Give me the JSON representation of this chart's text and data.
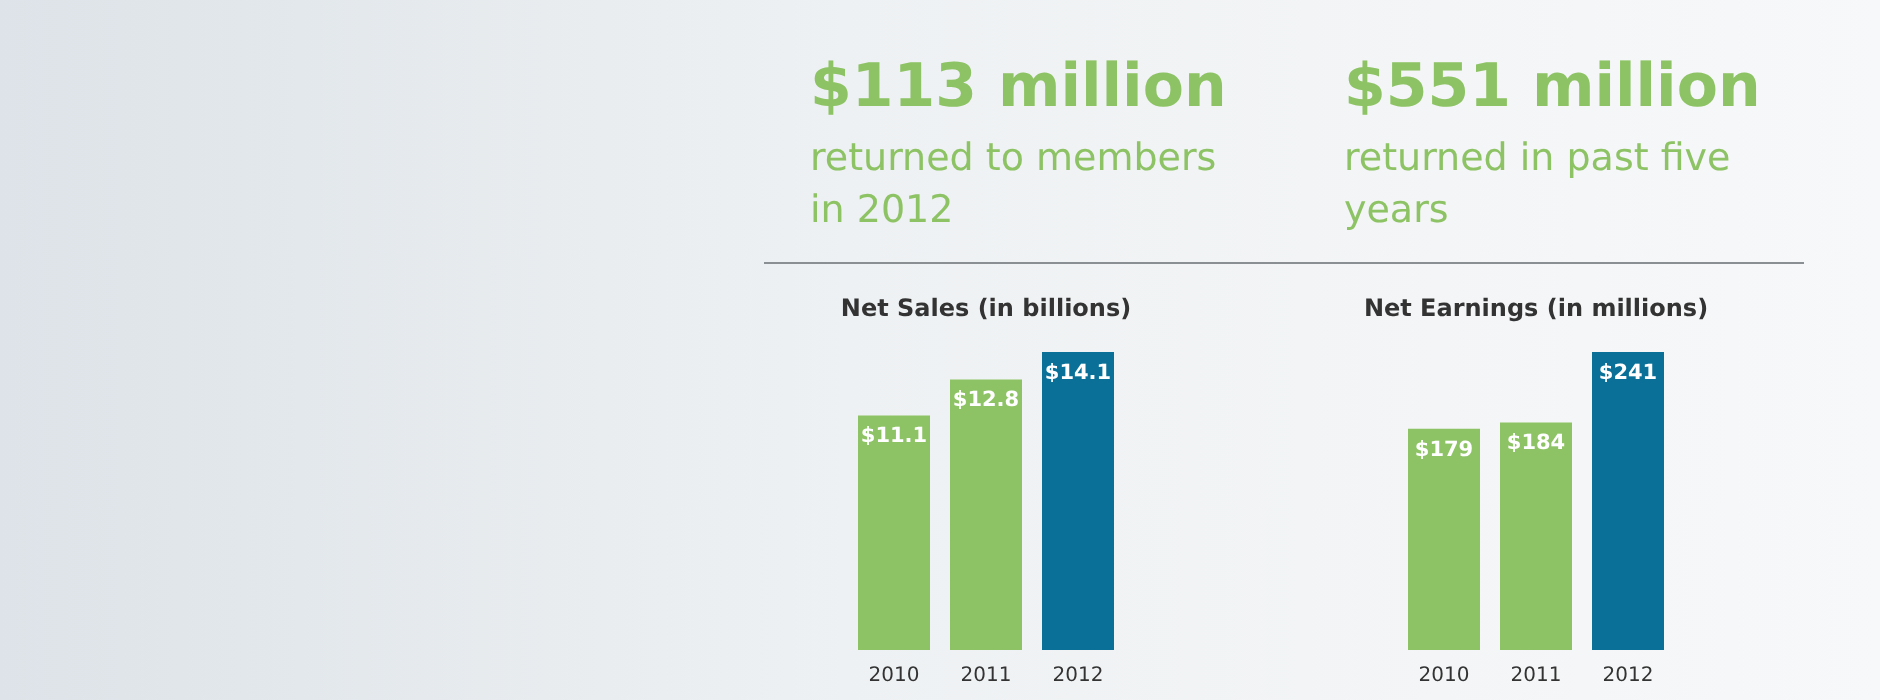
{
  "chart_data": [
    {
      "type": "other",
      "annotations": [
        "$113 million",
        "returned to members in 2012",
        "$551 million",
        "returned in past five years"
      ]
    },
    {
      "type": "bar",
      "title": "Net Sales (in billions)",
      "categories": [
        "2010",
        "2011",
        "2012"
      ],
      "values": [
        11.1,
        12.8,
        14.1
      ],
      "colors": [
        "#8dc364",
        "#8dc364",
        "#0a7098"
      ],
      "value_labels": [
        "$11.1",
        "$12.8",
        "$14.1"
      ]
    },
    {
      "type": "bar",
      "title": "Net Earnings (in millions)",
      "categories": [
        "2010",
        "2011",
        "2012"
      ],
      "values": [
        179,
        184,
        241
      ],
      "colors": [
        "#8dc364",
        "#8dc364",
        "#0a7098"
      ],
      "value_labels": [
        "$179",
        "$184",
        "$241"
      ]
    }
  ]
}
